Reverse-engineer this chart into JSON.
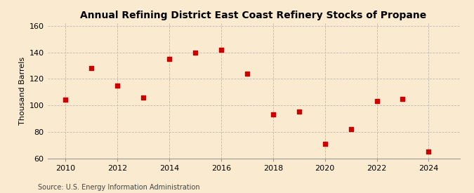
{
  "title": "Annual Refining District East Coast Refinery Stocks of Propane",
  "ylabel": "Thousand Barrels",
  "source": "Source: U.S. Energy Information Administration",
  "years": [
    2010,
    2011,
    2012,
    2013,
    2014,
    2015,
    2016,
    2017,
    2018,
    2019,
    2020,
    2021,
    2022,
    2023,
    2024
  ],
  "values": [
    104,
    128,
    115,
    106,
    135,
    140,
    142,
    124,
    93,
    95,
    71,
    82,
    103,
    105,
    65
  ],
  "xlim": [
    2009.3,
    2025.2
  ],
  "ylim": [
    60,
    162
  ],
  "yticks": [
    60,
    80,
    100,
    120,
    140,
    160
  ],
  "xticks": [
    2010,
    2012,
    2014,
    2016,
    2018,
    2020,
    2022,
    2024
  ],
  "marker_color": "#cc0000",
  "marker": "s",
  "marker_size": 16,
  "bg_color": "#faebd0",
  "grid_color": "#bbbbbb",
  "title_fontsize": 10,
  "label_fontsize": 8,
  "tick_fontsize": 8,
  "source_fontsize": 7
}
